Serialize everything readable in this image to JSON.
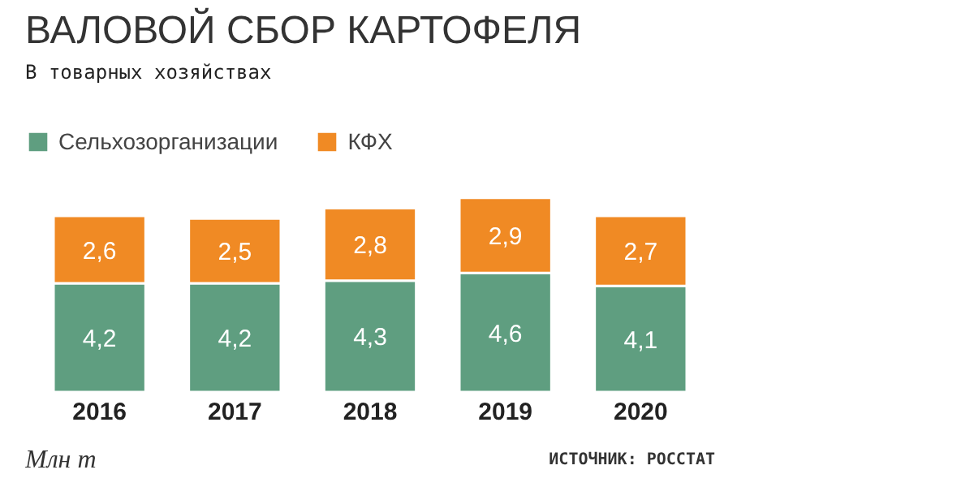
{
  "chart_data": {
    "type": "bar",
    "title": "ВАЛОВОЙ СБОР КАРТОФЕЛЯ",
    "subtitle": "В товарных хозяйствах",
    "categories": [
      "2016",
      "2017",
      "2018",
      "2019",
      "2020"
    ],
    "series": [
      {
        "name": "Сельхозорганизации",
        "color": "#5f9e80",
        "values": [
          4.2,
          4.2,
          4.3,
          4.6,
          4.1
        ],
        "value_labels": [
          "4,2",
          "4,2",
          "4,3",
          "4,6",
          "4,1"
        ]
      },
      {
        "name": "КФХ",
        "color": "#f08a24",
        "values": [
          2.6,
          2.5,
          2.8,
          2.9,
          2.7
        ],
        "value_labels": [
          "2,6",
          "2,5",
          "2,8",
          "2,9",
          "2,7"
        ]
      }
    ],
    "stacked": true,
    "legend": "top",
    "grid": false,
    "annotations": [
      "Млн т",
      "ИСТОЧНИК: РОССТАТ"
    ]
  }
}
